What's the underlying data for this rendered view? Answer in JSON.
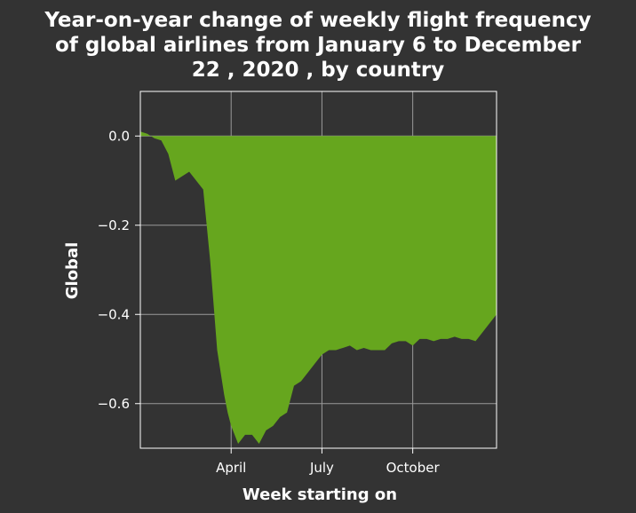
{
  "chart_data": {
    "type": "area",
    "title_lines": [
      "Year-on-year change of weekly flight frequency",
      "of global airlines from January 6 to December",
      "22 , 2020 , by country"
    ],
    "xlabel": "Week starting on",
    "ylabel": "Global",
    "x_ticks": [
      {
        "label": "April",
        "week": 13
      },
      {
        "label": "July",
        "week": 26
      },
      {
        "label": "October",
        "week": 39
      }
    ],
    "y_ticks": [
      {
        "label": "0.0",
        "value": 0.0
      },
      {
        "label": "−0.2",
        "value": -0.2
      },
      {
        "label": "−0.4",
        "value": -0.4
      },
      {
        "label": "−0.6",
        "value": -0.6
      }
    ],
    "xlim": [
      0,
      51
    ],
    "ylim": [
      -0.7,
      0.1
    ],
    "grid": true,
    "colors": {
      "fill": "#66a61e",
      "background": "#333333",
      "grid": "#999999",
      "text": "#ffffff"
    },
    "series": [
      {
        "x": [
          0,
          1,
          2,
          3,
          4,
          5,
          6,
          7,
          8,
          9,
          10,
          11,
          12,
          12.5,
          13,
          13.5,
          14,
          15,
          16,
          17,
          18,
          19,
          20,
          21,
          22,
          23,
          24,
          25,
          25.5,
          26,
          27,
          28,
          29,
          30,
          31,
          32,
          33,
          34,
          35,
          36,
          37,
          38,
          39,
          40,
          41,
          42,
          43,
          44,
          45,
          46,
          47,
          48,
          49,
          50,
          51
        ],
        "values": [
          0.01,
          0.005,
          -0.005,
          -0.01,
          -0.04,
          -0.1,
          -0.09,
          -0.08,
          -0.1,
          -0.12,
          -0.28,
          -0.48,
          -0.58,
          -0.62,
          -0.65,
          -0.67,
          -0.69,
          -0.67,
          -0.67,
          -0.69,
          -0.66,
          -0.65,
          -0.63,
          -0.62,
          -0.56,
          -0.55,
          -0.53,
          -0.51,
          -0.5,
          -0.49,
          -0.48,
          -0.48,
          -0.475,
          -0.47,
          -0.48,
          -0.475,
          -0.48,
          -0.48,
          -0.48,
          -0.465,
          -0.46,
          -0.46,
          -0.47,
          -0.455,
          -0.455,
          -0.46,
          -0.455,
          -0.455,
          -0.45,
          -0.455,
          -0.455,
          -0.46,
          -0.44,
          -0.42,
          -0.4
        ]
      }
    ]
  }
}
